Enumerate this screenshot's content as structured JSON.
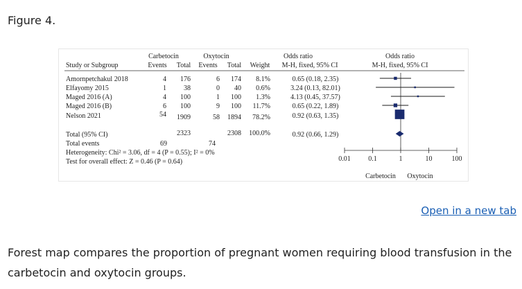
{
  "figure_label": "Figure 4.",
  "open_link": "Open in a new tab",
  "caption": "Forest map compares the proportion of pregnant women requiring blood transfusion in the carbetocin and oxytocin groups.",
  "chart_data": {
    "type": "forest",
    "headers": {
      "study": "Study or Subgroup",
      "group1": "Carbetocin",
      "group2": "Oxytocin",
      "events": "Events",
      "total": "Total",
      "weight": "Weight",
      "or_title": "Odds ratio",
      "or_method": "M-H, fixed, 95% CI"
    },
    "studies": [
      {
        "name": "Amornpetchakul 2018",
        "e1": "4",
        "t1": "176",
        "e2": "6",
        "t2": "174",
        "weight": "8.1%",
        "ci_text": "0.65 (0.18, 2.35)",
        "or": 0.65,
        "lo": 0.18,
        "hi": 2.35,
        "w": 8.1
      },
      {
        "name": "Elfayomy 2015",
        "e1": "1",
        "t1": "38",
        "e2": "0",
        "t2": "40",
        "weight": "0.6%",
        "ci_text": "3.24 (0.13, 82.01)",
        "or": 3.24,
        "lo": 0.13,
        "hi": 82.01,
        "w": 0.6
      },
      {
        "name": "Maged 2016 (A)",
        "e1": "4",
        "t1": "100",
        "e2": "1",
        "t2": "100",
        "weight": "1.3%",
        "ci_text": "4.13 (0.45, 37.57)",
        "or": 4.13,
        "lo": 0.45,
        "hi": 37.57,
        "w": 1.3
      },
      {
        "name": "Maged 2016 (B)",
        "e1": "6",
        "t1": "100",
        "e2": "9",
        "t2": "100",
        "weight": "11.7%",
        "ci_text": "0.65 (0.22, 1.89)",
        "or": 0.65,
        "lo": 0.22,
        "hi": 1.89,
        "w": 11.7
      },
      {
        "name": "Nelson 2021",
        "e1": "54",
        "t1": "1909",
        "e2": "58",
        "t2": "1894",
        "weight": "78.2%",
        "ci_text": "0.92 (0.63, 1.35)",
        "or": 0.92,
        "lo": 0.63,
        "hi": 1.35,
        "w": 78.2
      }
    ],
    "total": {
      "name": "Total (95% CI)",
      "t1": "2323",
      "t2": "2308",
      "weight": "100.0%",
      "ci_text": "0.92 (0.66, 1.29)",
      "or": 0.92,
      "lo": 0.66,
      "hi": 1.29
    },
    "total_events": {
      "name": "Total events",
      "e1": "69",
      "e2": "74"
    },
    "heterogeneity": "Heterogeneity: Chi² = 3.06, df = 4 (P = 0.55); I² = 0%",
    "overall_effect": "Test for overall effect: Z = 0.46 (P = 0.64)",
    "x_scale": "log",
    "xlim": [
      0.01,
      100
    ],
    "x_ticks": [
      0.01,
      0.1,
      1,
      10,
      100
    ],
    "x_tick_labels": [
      "0.01",
      "0.1",
      "1",
      "10",
      "100"
    ],
    "favours_left": "Carbetocin",
    "favours_right": "Oxytocin"
  }
}
